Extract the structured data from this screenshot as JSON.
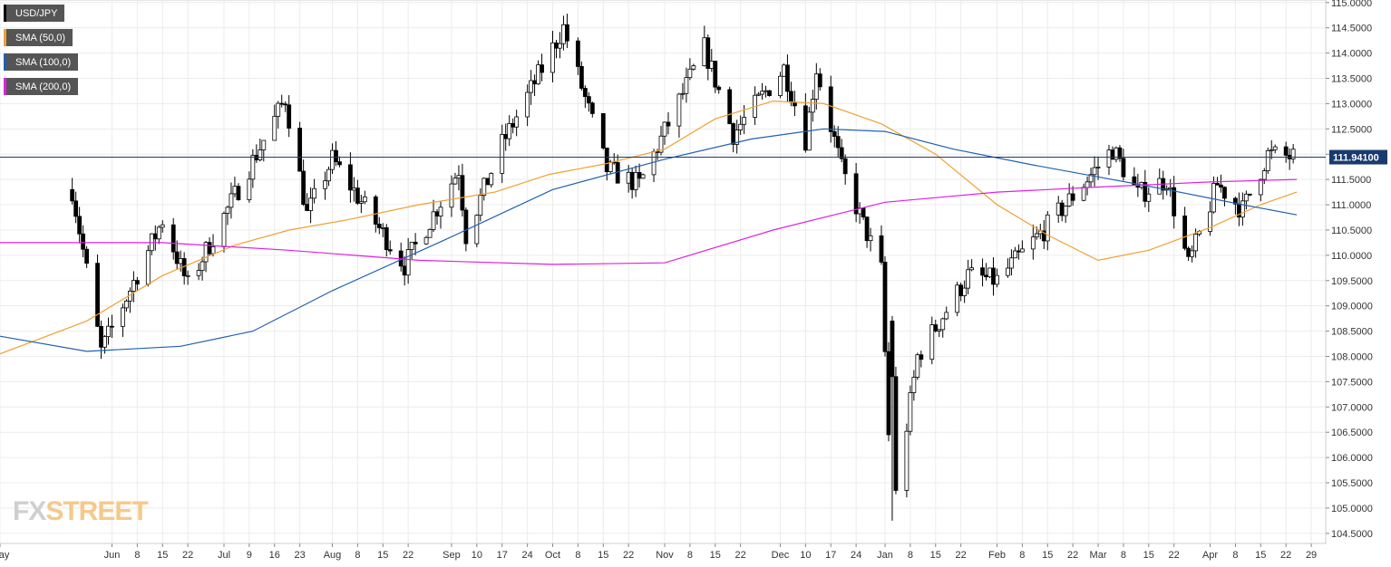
{
  "chart_data": {
    "type": "candlestick",
    "title": "USD/JPY",
    "ylim": [
      104.3,
      115.05
    ],
    "y_ticks": [
      "115.0000",
      "114.5000",
      "114.0000",
      "113.5000",
      "113.0000",
      "112.5000",
      "112.0000",
      "111.5000",
      "111.0000",
      "110.5000",
      "110.0000",
      "109.5000",
      "109.0000",
      "108.5000",
      "108.0000",
      "107.5000",
      "107.0000",
      "106.5000",
      "106.0000",
      "105.5000",
      "105.0000",
      "104.5000"
    ],
    "x_tick_labels": [
      "May",
      "Jun",
      "8",
      "15",
      "22",
      "Jul",
      "9",
      "16",
      "23",
      "Aug",
      "8",
      "15",
      "22",
      "Sep",
      "10",
      "17",
      "24",
      "Oct",
      "8",
      "15",
      "22",
      "Nov",
      "8",
      "15",
      "22",
      "Dec",
      "10",
      "17",
      "24",
      "Jan",
      "8",
      "15",
      "22",
      "Feb",
      "8",
      "15",
      "22",
      "Mar",
      "8",
      "15",
      "22",
      "Apr",
      "8",
      "15",
      "22",
      "29"
    ],
    "x_tick_dates": [
      "2018-05-01",
      "2018-06-01",
      "2018-06-08",
      "2018-06-15",
      "2018-06-22",
      "2018-07-02",
      "2018-07-09",
      "2018-07-16",
      "2018-07-23",
      "2018-08-01",
      "2018-08-08",
      "2018-08-15",
      "2018-08-22",
      "2018-09-03",
      "2018-09-10",
      "2018-09-17",
      "2018-09-24",
      "2018-10-01",
      "2018-10-08",
      "2018-10-15",
      "2018-10-22",
      "2018-11-01",
      "2018-11-08",
      "2018-11-15",
      "2018-11-22",
      "2018-12-03",
      "2018-12-10",
      "2018-12-17",
      "2018-12-24",
      "2019-01-01",
      "2019-01-08",
      "2019-01-15",
      "2019-01-22",
      "2019-02-01",
      "2019-02-08",
      "2019-02-15",
      "2019-02-22",
      "2019-03-01",
      "2019-03-08",
      "2019-03-15",
      "2019-03-22",
      "2019-04-01",
      "2019-04-08",
      "2019-04-15",
      "2019-04-22",
      "2019-04-29"
    ],
    "last_price": "111.94100",
    "last_price_value": 111.941,
    "grid": true,
    "legend_position": "top-left",
    "watermark": "FXSTREET",
    "key_points": [
      {
        "x": "2018-05-21",
        "y": 111.3
      },
      {
        "x": "2018-05-29",
        "y": 108.1
      },
      {
        "x": "2018-06-15",
        "y": 110.7
      },
      {
        "x": "2018-06-22",
        "y": 109.4
      },
      {
        "x": "2018-07-19",
        "y": 113.1
      },
      {
        "x": "2018-07-25",
        "y": 110.8
      },
      {
        "x": "2018-08-01",
        "y": 111.9
      },
      {
        "x": "2018-08-21",
        "y": 109.8
      },
      {
        "x": "2018-09-05",
        "y": 111.7
      },
      {
        "x": "2018-09-07",
        "y": 110.4
      },
      {
        "x": "2018-09-17",
        "y": 112.2
      },
      {
        "x": "2018-10-04",
        "y": 114.5
      },
      {
        "x": "2018-10-16",
        "y": 111.7
      },
      {
        "x": "2018-10-25",
        "y": 111.4
      },
      {
        "x": "2018-11-12",
        "y": 114.1
      },
      {
        "x": "2018-11-20",
        "y": 112.4
      },
      {
        "x": "2018-12-04",
        "y": 113.7
      },
      {
        "x": "2018-12-10",
        "y": 112.3
      },
      {
        "x": "2018-12-13",
        "y": 113.7
      },
      {
        "x": "2018-12-20",
        "y": 111.7
      },
      {
        "x": "2018-12-31",
        "y": 109.7
      },
      {
        "x": "2019-01-03",
        "y": 104.8
      },
      {
        "x": "2019-01-10",
        "y": 108.0
      },
      {
        "x": "2019-01-24",
        "y": 109.6
      },
      {
        "x": "2019-02-01",
        "y": 109.5
      },
      {
        "x": "2019-02-14",
        "y": 110.5
      },
      {
        "x": "2019-03-05",
        "y": 112.1
      },
      {
        "x": "2019-03-12",
        "y": 111.2
      },
      {
        "x": "2019-03-20",
        "y": 111.5
      },
      {
        "x": "2019-03-26",
        "y": 109.8
      },
      {
        "x": "2019-04-03",
        "y": 111.4
      },
      {
        "x": "2019-04-10",
        "y": 110.9
      },
      {
        "x": "2019-04-17",
        "y": 112.0
      },
      {
        "x": "2019-04-24",
        "y": 111.94
      }
    ],
    "series": [
      {
        "name": "SMA (50,0)",
        "color": "#f0a030",
        "values": [
          {
            "x": "2018-05-01",
            "y": 108.05
          },
          {
            "x": "2018-05-25",
            "y": 108.7
          },
          {
            "x": "2018-06-15",
            "y": 109.6
          },
          {
            "x": "2018-07-05",
            "y": 110.2
          },
          {
            "x": "2018-07-20",
            "y": 110.5
          },
          {
            "x": "2018-08-05",
            "y": 110.7
          },
          {
            "x": "2018-08-25",
            "y": 111.0
          },
          {
            "x": "2018-09-15",
            "y": 111.25
          },
          {
            "x": "2018-09-30",
            "y": 111.6
          },
          {
            "x": "2018-10-15",
            "y": 111.8
          },
          {
            "x": "2018-11-01",
            "y": 112.1
          },
          {
            "x": "2018-11-15",
            "y": 112.7
          },
          {
            "x": "2018-12-01",
            "y": 113.05
          },
          {
            "x": "2018-12-15",
            "y": 113.0
          },
          {
            "x": "2018-12-31",
            "y": 112.6
          },
          {
            "x": "2019-01-15",
            "y": 112.0
          },
          {
            "x": "2019-02-01",
            "y": 111.0
          },
          {
            "x": "2019-02-15",
            "y": 110.4
          },
          {
            "x": "2019-03-01",
            "y": 109.9
          },
          {
            "x": "2019-03-15",
            "y": 110.1
          },
          {
            "x": "2019-04-01",
            "y": 110.55
          },
          {
            "x": "2019-04-15",
            "y": 111.0
          },
          {
            "x": "2019-04-25",
            "y": 111.25
          }
        ]
      },
      {
        "name": "SMA (100,0)",
        "color": "#2060b0",
        "values": [
          {
            "x": "2018-05-01",
            "y": 108.4
          },
          {
            "x": "2018-05-25",
            "y": 108.1
          },
          {
            "x": "2018-06-20",
            "y": 108.2
          },
          {
            "x": "2018-07-10",
            "y": 108.5
          },
          {
            "x": "2018-08-01",
            "y": 109.3
          },
          {
            "x": "2018-09-01",
            "y": 110.3
          },
          {
            "x": "2018-10-01",
            "y": 111.3
          },
          {
            "x": "2018-11-01",
            "y": 111.9
          },
          {
            "x": "2018-11-25",
            "y": 112.3
          },
          {
            "x": "2018-12-15",
            "y": 112.5
          },
          {
            "x": "2019-01-01",
            "y": 112.45
          },
          {
            "x": "2019-01-20",
            "y": 112.1
          },
          {
            "x": "2019-02-10",
            "y": 111.8
          },
          {
            "x": "2019-03-01",
            "y": 111.55
          },
          {
            "x": "2019-03-20",
            "y": 111.3
          },
          {
            "x": "2019-04-10",
            "y": 111.0
          },
          {
            "x": "2019-04-25",
            "y": 110.8
          }
        ]
      },
      {
        "name": "SMA (200,0)",
        "color": "#e020e0",
        "values": [
          {
            "x": "2018-05-01",
            "y": 110.25
          },
          {
            "x": "2018-06-15",
            "y": 110.25
          },
          {
            "x": "2018-07-20",
            "y": 110.1
          },
          {
            "x": "2018-08-25",
            "y": 109.9
          },
          {
            "x": "2018-10-01",
            "y": 109.82
          },
          {
            "x": "2018-11-01",
            "y": 109.85
          },
          {
            "x": "2018-12-01",
            "y": 110.5
          },
          {
            "x": "2019-01-01",
            "y": 111.05
          },
          {
            "x": "2019-02-01",
            "y": 111.25
          },
          {
            "x": "2019-03-01",
            "y": 111.35
          },
          {
            "x": "2019-04-01",
            "y": 111.45
          },
          {
            "x": "2019-04-25",
            "y": 111.5
          }
        ]
      }
    ]
  },
  "legend": [
    {
      "label": "USD/JPY",
      "color": "#000000"
    },
    {
      "label": "SMA (50,0)",
      "color": "#f0a030"
    },
    {
      "label": "SMA (100,0)",
      "color": "#2060b0"
    },
    {
      "label": "SMA (200,0)",
      "color": "#e020e0"
    }
  ],
  "logo": {
    "fx": "FX",
    "street": "STREET"
  }
}
